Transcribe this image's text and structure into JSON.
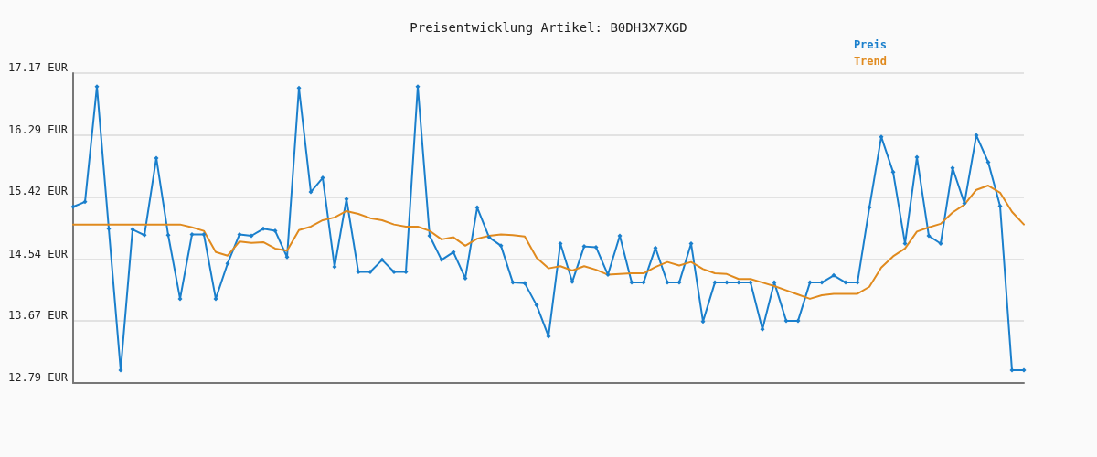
{
  "chart_data": {
    "type": "line",
    "title": "Preisentwicklung Artikel: B0DH3X7XGD",
    "categories": [
      null,
      null,
      null,
      null,
      null,
      null,
      null,
      null,
      null,
      null,
      null,
      null,
      null,
      null,
      null,
      null,
      null,
      null,
      null,
      null,
      null,
      null,
      null,
      null,
      null,
      null,
      null,
      null,
      null,
      null,
      null,
      null,
      null,
      null,
      null,
      null,
      null,
      null,
      null,
      null,
      null,
      null,
      null,
      null,
      null,
      null,
      null,
      null,
      null,
      null,
      null,
      null,
      null,
      null,
      null,
      null,
      null,
      null,
      null,
      null,
      null,
      null,
      null,
      null,
      null,
      null,
      null,
      null,
      null,
      null,
      null,
      null,
      null,
      null,
      null,
      null,
      null,
      null,
      null,
      null,
      null
    ],
    "series": [
      {
        "name": "Preis",
        "color": "#1a7fcc",
        "marker": "diamond",
        "values": [
          15.28,
          15.35,
          16.98,
          14.97,
          12.97,
          14.96,
          14.88,
          15.97,
          14.88,
          13.98,
          14.89,
          14.89,
          13.98,
          14.48,
          14.89,
          14.87,
          14.97,
          14.94,
          14.57,
          16.96,
          15.49,
          15.69,
          14.43,
          15.39,
          14.36,
          14.36,
          14.53,
          14.36,
          14.36,
          16.98,
          14.87,
          14.53,
          14.64,
          14.27,
          15.27,
          14.85,
          14.73,
          14.21,
          14.2,
          13.89,
          13.45,
          14.76,
          14.22,
          14.72,
          14.71,
          14.32,
          14.87,
          14.21,
          14.21,
          14.7,
          14.21,
          14.21,
          14.76,
          13.66,
          14.21,
          14.21,
          14.21,
          14.21,
          13.55,
          14.21,
          13.67,
          13.67,
          14.21,
          14.21,
          14.31,
          14.21,
          14.21,
          15.27,
          16.27,
          15.77,
          14.76,
          15.98,
          14.87,
          14.76,
          15.83,
          15.33,
          16.29,
          15.91,
          15.29,
          12.97,
          12.97
        ]
      },
      {
        "name": "Trend",
        "color": "#e08a1e",
        "marker": "none",
        "values": [
          15.03,
          15.03,
          15.03,
          15.03,
          15.03,
          15.03,
          15.03,
          15.03,
          15.03,
          15.03,
          14.99,
          14.94,
          14.64,
          14.59,
          14.79,
          14.77,
          14.78,
          14.69,
          14.66,
          14.95,
          15.0,
          15.09,
          15.13,
          15.22,
          15.18,
          15.12,
          15.09,
          15.03,
          15.0,
          15.0,
          14.94,
          14.82,
          14.85,
          14.73,
          14.83,
          14.87,
          14.89,
          14.88,
          14.86,
          14.56,
          14.41,
          14.44,
          14.38,
          14.44,
          14.39,
          14.32,
          14.33,
          14.34,
          14.34,
          14.43,
          14.5,
          14.45,
          14.5,
          14.4,
          14.34,
          14.33,
          14.26,
          14.26,
          14.21,
          14.16,
          14.1,
          14.04,
          13.98,
          14.03,
          14.05,
          14.05,
          14.05,
          14.15,
          14.42,
          14.58,
          14.69,
          14.93,
          14.99,
          15.04,
          15.2,
          15.31,
          15.52,
          15.58,
          15.48,
          15.21,
          15.03
        ]
      }
    ],
    "ylim": [
      12.79,
      17.17
    ],
    "yticks": [
      {
        "value": 12.79,
        "label": "12.79 EUR"
      },
      {
        "value": 13.67,
        "label": "13.67 EUR"
      },
      {
        "value": 14.54,
        "label": "14.54 EUR"
      },
      {
        "value": 15.42,
        "label": "15.42 EUR"
      },
      {
        "value": 16.29,
        "label": "16.29 EUR"
      },
      {
        "value": 17.17,
        "label": "17.17 EUR"
      }
    ],
    "grid": "y",
    "legend": "top right",
    "line_style": "solid"
  }
}
